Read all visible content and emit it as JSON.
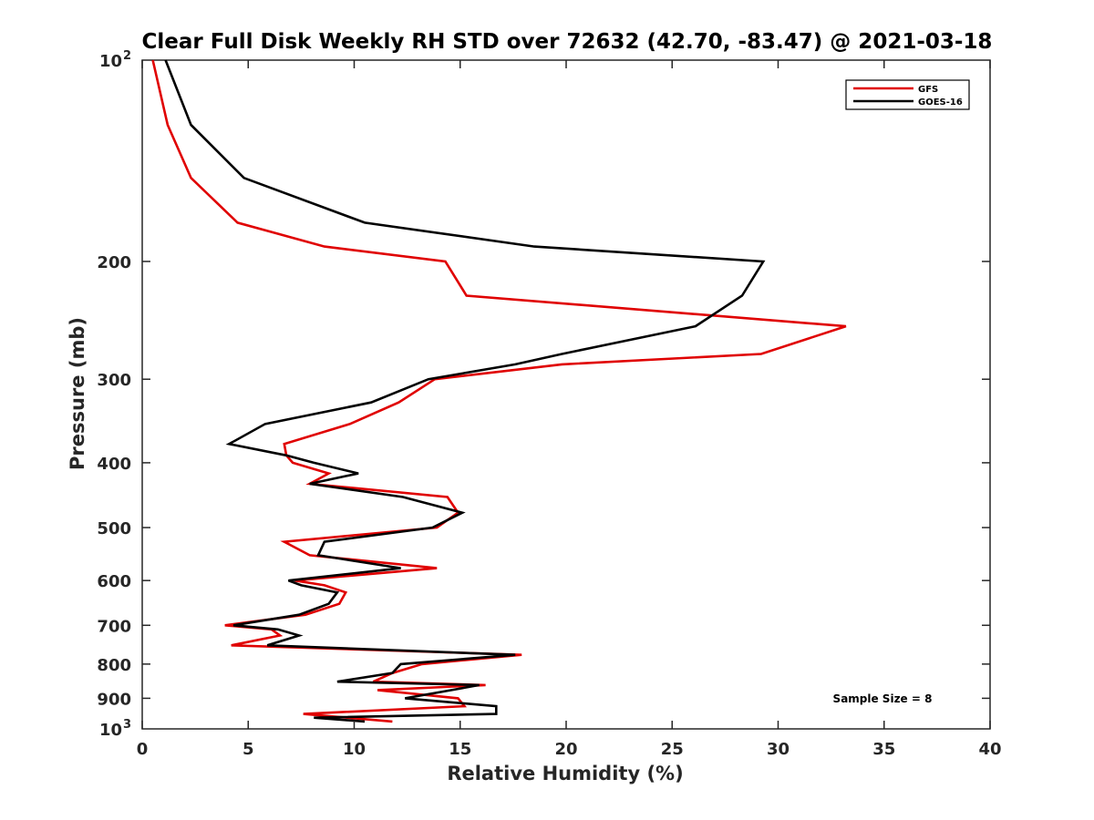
{
  "chart_data": {
    "type": "line",
    "title": "Clear Full Disk Weekly RH STD over 72632 (42.70, -83.47) @ 2021-03-18",
    "xlabel": "Relative Humidity (%)",
    "ylabel": "Pressure (mb)",
    "xlim": [
      0,
      40
    ],
    "ylim": [
      100,
      1000
    ],
    "yscale": "log",
    "y_reversed": true,
    "grid": false,
    "legend_position": "top-right",
    "x_ticks": [
      0,
      5,
      10,
      15,
      20,
      25,
      30,
      35,
      40
    ],
    "x_tick_labels": [
      "0",
      "5",
      "10",
      "15",
      "20",
      "25",
      "30",
      "35",
      "40"
    ],
    "y_ticks": [
      200,
      300,
      400,
      500,
      600,
      700,
      800,
      900
    ],
    "y_tick_labels": [
      "200",
      "300",
      "400",
      "500",
      "600",
      "700",
      "800",
      "900"
    ],
    "y_end_labels": [
      {
        "value": 100,
        "base": "10",
        "exp": "2"
      },
      {
        "value": 1000,
        "base": "10",
        "exp": "3"
      }
    ],
    "annotation": "Sample Size = 8",
    "series": [
      {
        "name": "GFS",
        "color": "#e00000",
        "points": [
          [
            0.5,
            100
          ],
          [
            1.2,
            125
          ],
          [
            2.3,
            150
          ],
          [
            4.5,
            175
          ],
          [
            8.6,
            190
          ],
          [
            14.3,
            200
          ],
          [
            15.3,
            225
          ],
          [
            33.2,
            250
          ],
          [
            29.2,
            275
          ],
          [
            19.8,
            285
          ],
          [
            13.8,
            300
          ],
          [
            12.1,
            325
          ],
          [
            9.8,
            350
          ],
          [
            6.7,
            375
          ],
          [
            6.8,
            390
          ],
          [
            7.1,
            400
          ],
          [
            8.8,
            415
          ],
          [
            7.9,
            430
          ],
          [
            14.4,
            450
          ],
          [
            14.9,
            475
          ],
          [
            13.9,
            500
          ],
          [
            6.7,
            525
          ],
          [
            7.9,
            550
          ],
          [
            13.9,
            575
          ],
          [
            7.2,
            600
          ],
          [
            8.6,
            610
          ],
          [
            9.6,
            625
          ],
          [
            9.3,
            650
          ],
          [
            7.7,
            675
          ],
          [
            3.9,
            700
          ],
          [
            6.1,
            710
          ],
          [
            6.5,
            725
          ],
          [
            4.2,
            750
          ],
          [
            17.9,
            775
          ],
          [
            13.2,
            800
          ],
          [
            11.8,
            825
          ],
          [
            10.9,
            850
          ],
          [
            16.2,
            860
          ],
          [
            11.1,
            875
          ],
          [
            14.9,
            900
          ],
          [
            15.2,
            925
          ],
          [
            7.6,
            950
          ],
          [
            11.8,
            975
          ]
        ]
      },
      {
        "name": "GOES-16",
        "color": "#000000",
        "points": [
          [
            1.1,
            100
          ],
          [
            2.3,
            125
          ],
          [
            4.8,
            150
          ],
          [
            10.5,
            175
          ],
          [
            18.5,
            190
          ],
          [
            29.3,
            200
          ],
          [
            28.3,
            225
          ],
          [
            26.1,
            250
          ],
          [
            19.8,
            275
          ],
          [
            17.6,
            285
          ],
          [
            13.5,
            300
          ],
          [
            10.8,
            325
          ],
          [
            5.8,
            350
          ],
          [
            4.1,
            375
          ],
          [
            6.8,
            390
          ],
          [
            8.1,
            400
          ],
          [
            10.2,
            415
          ],
          [
            7.9,
            430
          ],
          [
            12.3,
            450
          ],
          [
            15.1,
            475
          ],
          [
            13.7,
            500
          ],
          [
            8.6,
            525
          ],
          [
            8.3,
            550
          ],
          [
            12.2,
            575
          ],
          [
            6.9,
            600
          ],
          [
            7.5,
            610
          ],
          [
            9.2,
            625
          ],
          [
            8.8,
            650
          ],
          [
            7.4,
            675
          ],
          [
            4.3,
            700
          ],
          [
            6.4,
            710
          ],
          [
            7.4,
            725
          ],
          [
            5.9,
            750
          ],
          [
            17.6,
            775
          ],
          [
            12.2,
            800
          ],
          [
            11.8,
            825
          ],
          [
            9.2,
            850
          ],
          [
            15.9,
            860
          ],
          [
            14.6,
            875
          ],
          [
            12.4,
            900
          ],
          [
            16.7,
            925
          ],
          [
            16.7,
            950
          ],
          [
            8.1,
            962
          ],
          [
            10.5,
            975
          ]
        ]
      }
    ]
  }
}
